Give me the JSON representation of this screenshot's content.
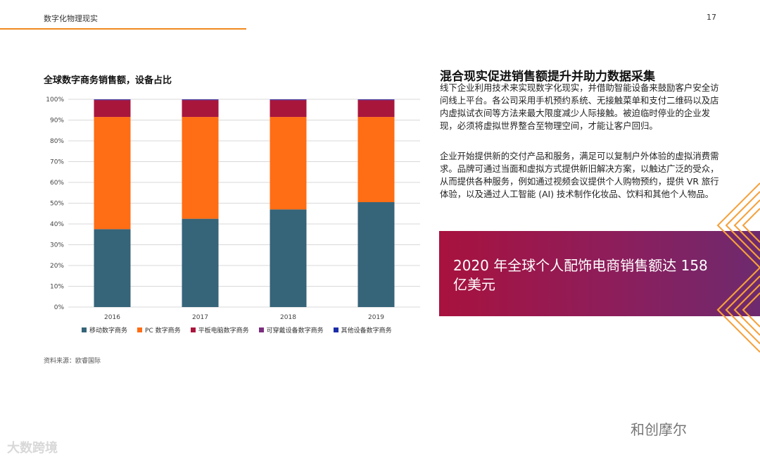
{
  "header": {
    "title": "数字化物理现实",
    "page_number": "17"
  },
  "chart_title": "全球数字商务销售额，设备占比",
  "source": "资料来源：欧睿国际",
  "chart_data": {
    "type": "bar",
    "stacked": true,
    "categories": [
      "2016",
      "2017",
      "2018",
      "2019"
    ],
    "series": [
      {
        "name": "移动数字商务",
        "color": "#366479",
        "values": [
          37.5,
          42.5,
          47,
          50.5
        ]
      },
      {
        "name": "PC 数字商务",
        "color": "#ff6d14",
        "values": [
          54,
          49,
          44.5,
          41
        ]
      },
      {
        "name": "平板电脑数字商务",
        "color": "#a9163c",
        "values": [
          8,
          8,
          8,
          8
        ]
      },
      {
        "name": "可穿戴设备数字商务",
        "color": "#7b2e7e",
        "values": [
          0.3,
          0.3,
          0.3,
          0.3
        ]
      },
      {
        "name": "其他设备数字商务",
        "color": "#1a2ea8",
        "values": [
          0.2,
          0.2,
          0.2,
          0.2
        ]
      }
    ],
    "yticks": [
      "0%",
      "10%",
      "20%",
      "30%",
      "40%",
      "50%",
      "60%",
      "70%",
      "80%",
      "90%",
      "100%"
    ],
    "ylim": [
      0,
      100
    ],
    "grid": true,
    "legend": "bottom"
  },
  "article": {
    "title": "混合现实促进销售额提升并助力数据采集",
    "p1": "线下企业利用技术来实现数字化现实，并借助智能设备来鼓励客户安全访问线上平台。各公司采用手机预约系统、无接触菜单和支付二维码以及店内虚拟试衣间等方法来最大限度减少人际接触。被迫临时停业的企业发现，必须将虚拟世界整合至物理空间，才能让客户回归。",
    "p2": "企业开始提供新的交付产品和服务，满足可以复制户外体验的虚拟消费需求。品牌可通过当面和虚拟方式提供新旧解决方案，以触达广泛的受众，从而提供各种服务，例如通过视频会议提供个人购物预约，提供 VR 旅行体验，以及通过人工智能 (AI) 技术制作化妆品、饮料和其他个人物品。"
  },
  "callout": {
    "text": "2020 年全球个人配饰电商销售额达 158 亿美元"
  },
  "watermarks": {
    "left": "大数跨境",
    "right": "和创摩尔"
  }
}
